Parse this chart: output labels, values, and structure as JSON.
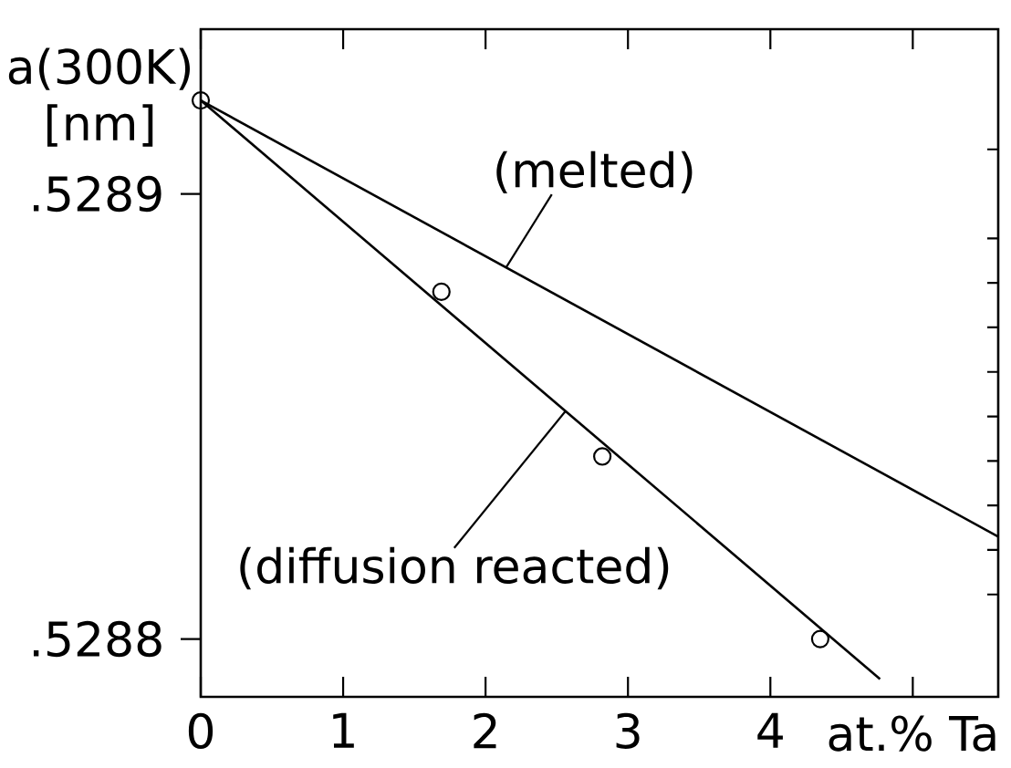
{
  "chart_data": {
    "type": "scatter",
    "xlabel": "at.% Ta",
    "ylabel": "a(300K) [nm]",
    "xlim": [
      0,
      5.6
    ],
    "xticks": [
      0,
      1,
      2,
      3,
      4,
      {
        "value": 5,
        "label": null
      }
    ],
    "ylim": [
      0.528787,
      0.528937
    ],
    "yticks": [
      {
        "value": 0.52881,
        "label": null
      },
      {
        "value": 0.52882,
        "label": null
      },
      {
        "value": 0.52883,
        "label": null
      },
      {
        "value": 0.52884,
        "label": null
      },
      {
        "value": 0.52885,
        "label": null
      },
      {
        "value": 0.52886,
        "label": null
      },
      {
        "value": 0.52887,
        "label": null
      },
      {
        "value": 0.52888,
        "label": null
      },
      {
        "value": 0.52889,
        "label": null
      },
      {
        "value": 0.52891,
        "label": null
      },
      {
        "value": 0.5288,
        "label": ".5288"
      },
      {
        "value": 0.5289,
        "label": ".5289"
      }
    ],
    "marker": "circle",
    "series": [
      {
        "x": [
          0,
          1.69,
          2.82,
          4.35
        ],
        "values": [
          0.528921,
          0.528878,
          0.528841,
          0.5288
        ],
        "color": "#000000"
      },
      {
        "type": "line",
        "name": "(melted)",
        "marker": "none",
        "x": [
          0,
          5.6
        ],
        "values": [
          0.528921,
          0.528823
        ],
        "color": "#000000"
      },
      {
        "type": "line",
        "name": "(diffusion reacted)",
        "marker": "none",
        "x": [
          0,
          4.77
        ],
        "values": [
          0.528921,
          0.528791
        ],
        "color": "#000000"
      }
    ]
  }
}
